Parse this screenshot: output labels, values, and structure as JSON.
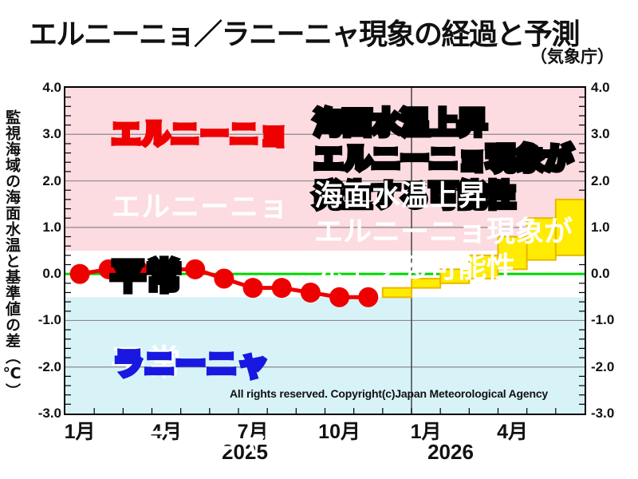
{
  "header": {
    "title": "エルニーニョ／ラニーニャ現象の経過と予測",
    "source": "（気象庁）"
  },
  "y_axis": {
    "label": "監視海域の海面水温と基準値の差（℃）",
    "ticks": [
      "4.0",
      "3.0",
      "2.0",
      "1.0",
      "0.0",
      "-1.0",
      "-2.0",
      "-3.0"
    ]
  },
  "x_axis": {
    "month_labels": [
      {
        "text": "1月",
        "m": 0
      },
      {
        "text": "4月",
        "m": 3
      },
      {
        "text": "7月",
        "m": 6
      },
      {
        "text": "10月",
        "m": 9
      },
      {
        "text": "1月",
        "m": 12
      },
      {
        "text": "4月",
        "m": 15
      }
    ],
    "year_labels": [
      "2025",
      "2026"
    ]
  },
  "zones": {
    "elnino": {
      "label": "エルニーニョ"
    },
    "normal": {
      "label": "平常"
    },
    "lanina": {
      "label": "ラニーニャ"
    }
  },
  "annotation": {
    "text": "海面水温上昇\nエルニーニョ現象が\n発生する可能性"
  },
  "copyright": "All rights reserved. Copyright(c)Japan Meteorological Agency",
  "colors": {
    "elnino_zone": "#fcdbe1",
    "normal_zone": "#ffffff",
    "lanina_zone": "#d8f3f8",
    "observed_red": "#ee0000",
    "forecast_fill": "#ffec00",
    "forecast_border": "#eab800",
    "zero_line_green": "#00d800",
    "gridline": "#8a8a8a",
    "year_divider": "#444444",
    "label_elnino_outline": "#ee0000",
    "label_lanina_outline": "#1818e0"
  },
  "chart_data": {
    "type": "line",
    "title": "エルニーニョ／ラニーニャ現象の経過と予測",
    "ylabel": "監視海域の海面水温と基準値の差（℃）",
    "ylim": [
      -3.0,
      4.0
    ],
    "y_major_step": 1.0,
    "y_minor_step": 0.2,
    "grid": true,
    "x_range_months": 18,
    "start": {
      "year": 2025,
      "month": 1
    },
    "year_divider_month_index": 12,
    "zone_boundaries": {
      "elnino_above": 0.5,
      "lanina_below": -0.5
    },
    "observed": {
      "year": 2025,
      "months": [
        1,
        2,
        3,
        4,
        5,
        6,
        7,
        8,
        9,
        10,
        11
      ],
      "values": [
        0.0,
        0.1,
        0.1,
        0.1,
        0.1,
        -0.1,
        -0.3,
        -0.3,
        -0.4,
        -0.5,
        -0.5
      ]
    },
    "forecast": {
      "entries": [
        {
          "year": 2025,
          "month": 12,
          "range": [
            -0.5,
            -0.3
          ]
        },
        {
          "year": 2026,
          "month": 1,
          "range": [
            -0.3,
            -0.1
          ]
        },
        {
          "year": 2026,
          "month": 2,
          "range": [
            -0.2,
            0.1
          ]
        },
        {
          "year": 2026,
          "month": 3,
          "range": [
            -0.1,
            0.4
          ]
        },
        {
          "year": 2026,
          "month": 4,
          "range": [
            0.1,
            0.8
          ]
        },
        {
          "year": 2026,
          "month": 5,
          "range": [
            0.3,
            1.2
          ]
        },
        {
          "year": 2026,
          "month": 6,
          "range": [
            0.4,
            1.6
          ]
        }
      ]
    }
  }
}
